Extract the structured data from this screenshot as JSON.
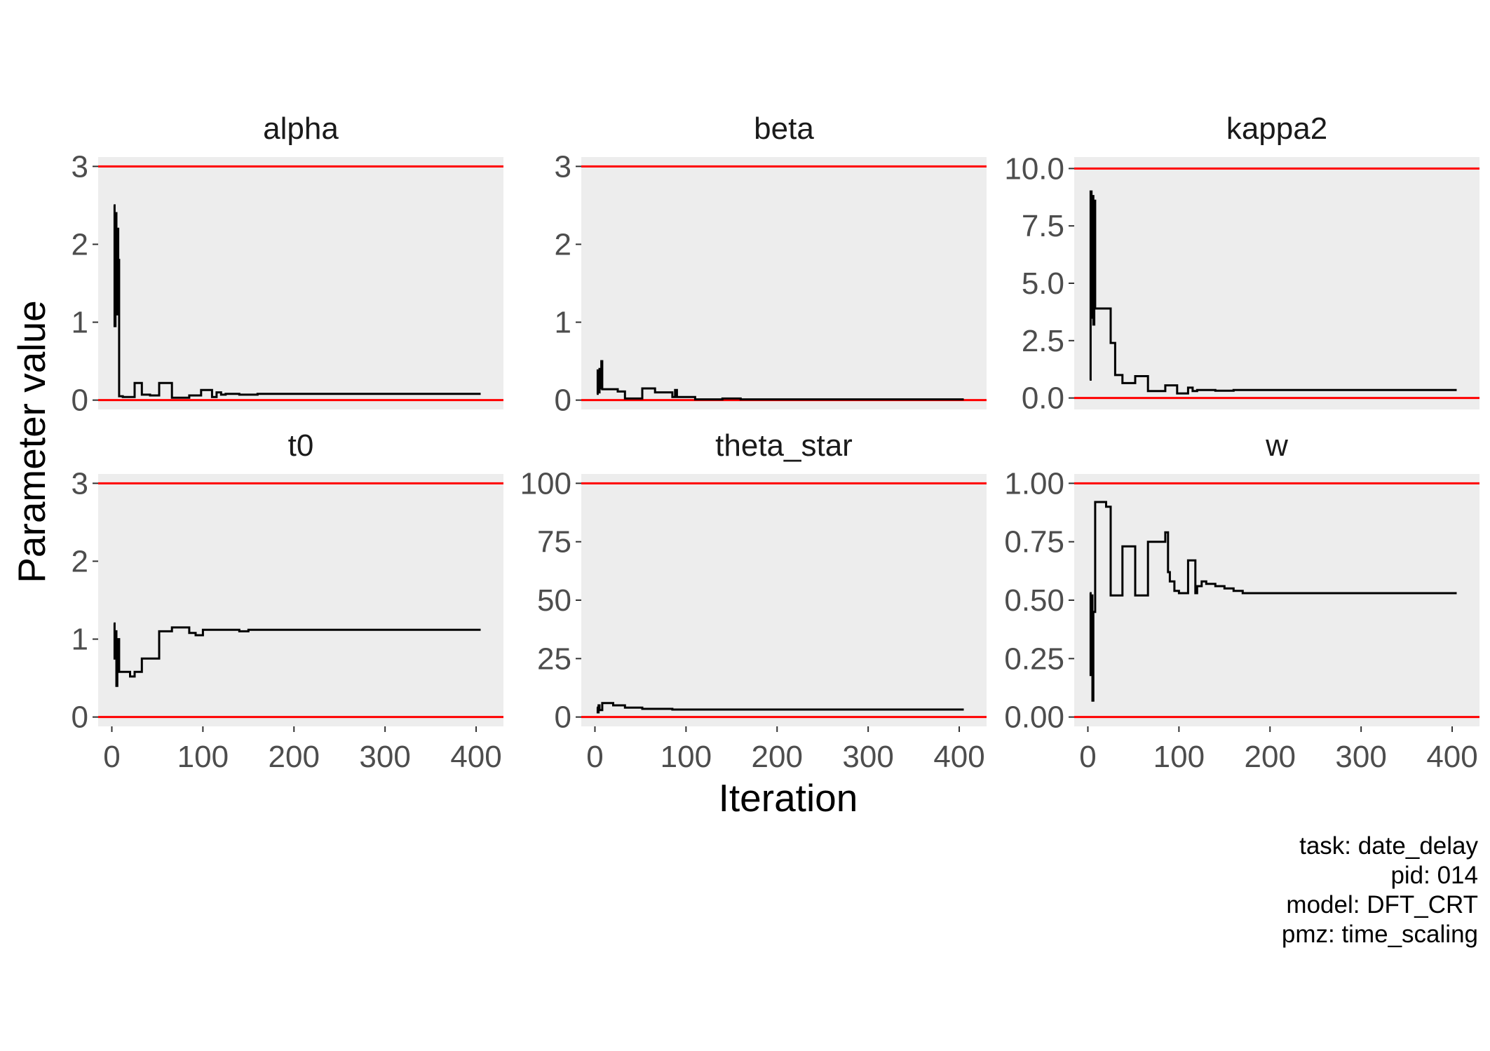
{
  "chart_data": {
    "type": "line",
    "layout": "facet_wrap 2x3",
    "xlabel": "Iteration",
    "ylabel": "Parameter value",
    "x_ticks": [
      0,
      100,
      200,
      300,
      400
    ],
    "xlim": [
      -15,
      430
    ],
    "grid": false,
    "panel_background": "#ededed",
    "line_color": "#000000",
    "bound_color": "#ff0000",
    "caption": [
      "task: date_delay",
      "pid: 014",
      "model: DFT_CRT",
      "pmz: time_scaling"
    ],
    "facets": [
      {
        "title": "alpha",
        "ylim": [
          -0.12,
          3.12
        ],
        "y_ticks": [
          0,
          1,
          2,
          3
        ],
        "y_tick_labels": [
          "0",
          "1",
          "2",
          "3"
        ],
        "bounds": [
          0,
          3
        ],
        "series": {
          "x": [
            2,
            3,
            3,
            4,
            4,
            5,
            5,
            6,
            6,
            7,
            7,
            8,
            8,
            9,
            12,
            12,
            25,
            25,
            33,
            33,
            42,
            42,
            52,
            52,
            66,
            66,
            85,
            85,
            98,
            98,
            110,
            110,
            115,
            115,
            120,
            120,
            125,
            125,
            140,
            140,
            160,
            160,
            200,
            200,
            405
          ],
          "y": [
            2.5,
            2.5,
            0.95,
            0.95,
            2.4,
            2.4,
            1.1,
            1.1,
            2.2,
            2.2,
            1.8,
            1.8,
            0.05,
            0.05,
            0.05,
            0.04,
            0.04,
            0.22,
            0.22,
            0.07,
            0.07,
            0.06,
            0.06,
            0.22,
            0.22,
            0.03,
            0.03,
            0.06,
            0.06,
            0.13,
            0.13,
            0.04,
            0.04,
            0.1,
            0.1,
            0.07,
            0.07,
            0.08,
            0.08,
            0.07,
            0.07,
            0.08,
            0.08,
            0.08,
            0.08
          ]
        }
      },
      {
        "title": "beta",
        "ylim": [
          -0.12,
          3.12
        ],
        "y_ticks": [
          0,
          1,
          2,
          3
        ],
        "y_tick_labels": [
          "0",
          "1",
          "2",
          "3"
        ],
        "bounds": [
          0,
          3
        ],
        "series": {
          "x": [
            2,
            3,
            3,
            4,
            4,
            5,
            5,
            6,
            6,
            7,
            7,
            8,
            8,
            25,
            25,
            33,
            33,
            52,
            52,
            66,
            66,
            85,
            85,
            88,
            88,
            90,
            90,
            110,
            110,
            140,
            140,
            160,
            160,
            405
          ],
          "y": [
            0.08,
            0.08,
            0.38,
            0.38,
            0.1,
            0.1,
            0.4,
            0.4,
            0.15,
            0.15,
            0.5,
            0.5,
            0.14,
            0.14,
            0.11,
            0.11,
            0.02,
            0.02,
            0.15,
            0.15,
            0.1,
            0.1,
            0.04,
            0.04,
            0.13,
            0.13,
            0.04,
            0.04,
            0.01,
            0.01,
            0.02,
            0.02,
            0.01,
            0.01
          ]
        }
      },
      {
        "title": "kappa2",
        "ylim": [
          -0.5,
          10.5
        ],
        "y_ticks": [
          0,
          2.5,
          5,
          7.5,
          10
        ],
        "y_tick_labels": [
          "0.0",
          "2.5",
          "5.0",
          "7.5",
          "10.0"
        ],
        "bounds": [
          0,
          10
        ],
        "series": {
          "x": [
            2,
            3,
            3,
            4,
            4,
            5,
            5,
            6,
            6,
            7,
            7,
            8,
            8,
            25,
            25,
            30,
            30,
            38,
            38,
            52,
            52,
            66,
            66,
            85,
            85,
            98,
            98,
            110,
            110,
            115,
            115,
            120,
            120,
            140,
            140,
            160,
            160,
            405
          ],
          "y": [
            0.8,
            0.8,
            9.0,
            9.0,
            3.5,
            3.5,
            8.8,
            8.8,
            3.2,
            3.2,
            8.6,
            8.6,
            3.9,
            3.9,
            2.4,
            2.4,
            1.0,
            1.0,
            0.65,
            0.65,
            0.95,
            0.95,
            0.3,
            0.3,
            0.55,
            0.55,
            0.2,
            0.2,
            0.45,
            0.45,
            0.3,
            0.3,
            0.35,
            0.35,
            0.32,
            0.32,
            0.35,
            0.35
          ]
        }
      },
      {
        "title": "t0",
        "ylim": [
          -0.12,
          3.12
        ],
        "y_ticks": [
          0,
          1,
          2,
          3
        ],
        "y_tick_labels": [
          "0",
          "1",
          "2",
          "3"
        ],
        "bounds": [
          0,
          3
        ],
        "series": {
          "x": [
            2,
            3,
            3,
            4,
            4,
            5,
            5,
            6,
            6,
            7,
            7,
            8,
            8,
            20,
            20,
            25,
            25,
            33,
            33,
            52,
            52,
            66,
            66,
            85,
            85,
            92,
            92,
            100,
            100,
            140,
            140,
            150,
            150,
            405
          ],
          "y": [
            1.2,
            1.2,
            0.75,
            0.75,
            1.1,
            1.1,
            0.4,
            0.4,
            0.8,
            0.8,
            1.0,
            1.0,
            0.58,
            0.58,
            0.52,
            0.52,
            0.58,
            0.58,
            0.75,
            0.75,
            1.1,
            1.1,
            1.15,
            1.15,
            1.08,
            1.08,
            1.05,
            1.05,
            1.12,
            1.12,
            1.1,
            1.1,
            1.12,
            1.12
          ]
        }
      },
      {
        "title": "theta_star",
        "ylim": [
          -4,
          104
        ],
        "y_ticks": [
          0,
          25,
          50,
          75,
          100
        ],
        "y_tick_labels": [
          "0",
          "25",
          "50",
          "75",
          "100"
        ],
        "bounds": [
          0,
          100
        ],
        "series": {
          "x": [
            2,
            3,
            3,
            4,
            4,
            5,
            5,
            8,
            8,
            20,
            20,
            33,
            33,
            52,
            52,
            85,
            85,
            110,
            110,
            405
          ],
          "y": [
            4,
            4,
            2,
            2,
            5,
            5,
            3,
            3,
            6,
            6,
            5,
            5,
            4,
            4,
            3.5,
            3.5,
            3.2,
            3.2,
            3.2,
            3.2
          ]
        }
      },
      {
        "title": "w",
        "ylim": [
          -0.04,
          1.04
        ],
        "y_ticks": [
          0,
          0.25,
          0.5,
          0.75,
          1
        ],
        "y_tick_labels": [
          "0.00",
          "0.25",
          "0.50",
          "0.75",
          "1.00"
        ],
        "bounds": [
          0,
          1
        ],
        "series": {
          "x": [
            2,
            3,
            3,
            4,
            4,
            5,
            5,
            6,
            6,
            8,
            8,
            20,
            20,
            25,
            25,
            30,
            30,
            38,
            38,
            52,
            52,
            66,
            66,
            85,
            85,
            88,
            88,
            90,
            90,
            95,
            95,
            100,
            100,
            110,
            110,
            118,
            118,
            120,
            120,
            125,
            125,
            130,
            130,
            140,
            140,
            150,
            150,
            160,
            160,
            170,
            170,
            180,
            180,
            405
          ],
          "y": [
            0.53,
            0.53,
            0.18,
            0.18,
            0.52,
            0.52,
            0.07,
            0.07,
            0.45,
            0.45,
            0.92,
            0.92,
            0.9,
            0.9,
            0.52,
            0.52,
            0.52,
            0.52,
            0.73,
            0.73,
            0.52,
            0.52,
            0.75,
            0.75,
            0.79,
            0.79,
            0.62,
            0.62,
            0.58,
            0.58,
            0.54,
            0.54,
            0.53,
            0.53,
            0.67,
            0.67,
            0.53,
            0.53,
            0.56,
            0.56,
            0.58,
            0.58,
            0.57,
            0.57,
            0.56,
            0.56,
            0.55,
            0.55,
            0.54,
            0.54,
            0.53,
            0.53,
            0.53,
            0.53
          ]
        }
      }
    ]
  }
}
